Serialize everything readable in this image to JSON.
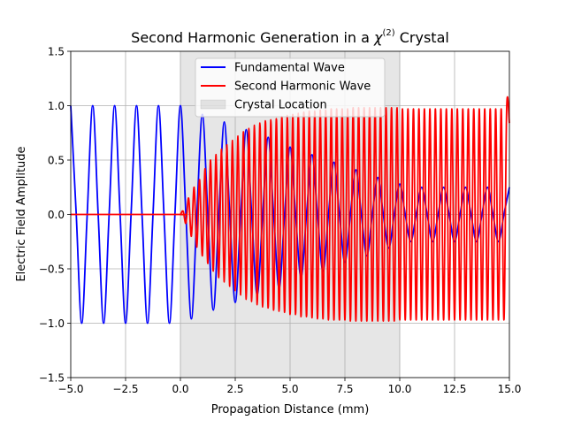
{
  "chart_data": {
    "type": "line",
    "title_main": "Second Harmonic Generation in a ",
    "title_chi": "χ",
    "title_sup": "(2)",
    "title_end": " Crystal",
    "xlabel": "Propagation Distance (mm)",
    "ylabel": "Electric Field Amplitude",
    "xlim": [
      -5,
      15
    ],
    "ylim": [
      -1.5,
      1.5
    ],
    "xticks": [
      -5,
      -2.5,
      0,
      2.5,
      5,
      7.5,
      10,
      12.5,
      15
    ],
    "xtick_labels": [
      "−5.0",
      "−2.5",
      "0.0",
      "2.5",
      "5.0",
      "7.5",
      "10.0",
      "12.5",
      "15.0"
    ],
    "yticks": [
      -1.5,
      -1,
      -0.5,
      0,
      0.5,
      1,
      1.5
    ],
    "ytick_labels": [
      "−1.5",
      "−1.0",
      "−0.5",
      "0.0",
      "0.5",
      "1.0",
      "1.5"
    ],
    "grid": true,
    "legend_position": "top-center",
    "crystal_region": {
      "x_start": 0,
      "x_end": 10,
      "label": "Crystal Location",
      "color": "#808080",
      "opacity": 0.2
    },
    "series": [
      {
        "name": "Fundamental Wave",
        "color": "#0000ff",
        "x": [
          -5,
          -4.75,
          -4.5,
          -4.25,
          -4,
          -3.75,
          -3.5,
          -3.25,
          -3,
          -2.75,
          -2.5,
          -2.25,
          -2,
          -1.75,
          -1.5,
          -1.25,
          -1,
          -0.75,
          -0.5,
          -0.25,
          0,
          0.25,
          0.5,
          0.75,
          1,
          1.25,
          1.5,
          1.75,
          2,
          2.25,
          2.5,
          2.75,
          3,
          3.25,
          3.5,
          3.75,
          4,
          4.25,
          4.5,
          4.75,
          5,
          5.25,
          5.5,
          5.75,
          6,
          6.25,
          6.5,
          6.75,
          7,
          7.25,
          7.5,
          7.75,
          8,
          8.25,
          8.5,
          8.75,
          9,
          9.25,
          9.5,
          9.75,
          10,
          10.25,
          10.5,
          10.75,
          11,
          11.25,
          11.5,
          11.75,
          12,
          12.25,
          12.5,
          12.75,
          13,
          13.25,
          13.5,
          13.75,
          14,
          14.25,
          14.5,
          14.75,
          15
        ],
        "y": [
          1,
          0,
          -1,
          0,
          1,
          0,
          -1,
          0,
          1,
          0,
          -1,
          0,
          1,
          0,
          -1,
          0,
          1,
          0,
          -1,
          0,
          1,
          0,
          -0.96,
          0,
          0.92,
          0,
          -0.88,
          0,
          0.85,
          0,
          -0.81,
          0,
          0.78,
          0,
          -0.74,
          0,
          0.71,
          0,
          -0.68,
          0,
          0.62,
          0,
          -0.58,
          0,
          0.55,
          0,
          -0.52,
          0,
          0.48,
          0,
          -0.44,
          0,
          0.41,
          0,
          -0.38,
          0,
          0.34,
          0,
          -0.31,
          0,
          0.28,
          0,
          -0.25,
          0,
          0.25,
          0,
          -0.25,
          0,
          0.25,
          0,
          -0.25,
          0,
          0.25,
          0,
          -0.25,
          0,
          0.25,
          0,
          -0.25,
          0,
          0.25
        ]
      },
      {
        "name": "Second Harmonic Wave",
        "color": "#ff0000",
        "x": [
          -5,
          -0.1,
          0,
          0.125,
          0.25,
          0.375,
          0.5,
          0.625,
          0.75,
          0.875,
          1,
          1.125,
          1.25,
          1.375,
          1.5,
          1.625,
          1.75,
          1.875,
          2,
          2.125,
          2.25,
          2.375,
          2.5,
          2.625,
          2.75,
          2.875,
          3,
          3.125,
          3.25,
          3.375,
          3.5,
          3.625,
          3.75,
          3.875,
          4,
          4.125,
          4.25,
          4.375,
          4.5,
          4.625,
          4.75,
          4.875,
          5,
          5.125,
          5.25,
          5.375,
          5.5,
          5.625,
          5.75,
          5.875,
          6,
          6.125,
          6.25,
          6.375,
          6.5,
          6.625,
          6.75,
          6.875,
          7,
          7.125,
          7.25,
          7.375,
          7.5,
          7.625,
          7.75,
          7.875,
          8,
          8.125,
          8.25,
          8.375,
          8.5,
          8.625,
          8.75,
          8.875,
          9,
          9.125,
          9.25,
          9.375,
          9.5,
          9.625,
          9.75,
          9.875,
          10,
          10.125,
          10.25,
          10.375,
          10.5,
          10.625,
          10.75,
          10.875,
          11,
          11.125,
          11.25,
          11.375,
          11.5,
          11.625,
          11.75,
          11.875,
          12,
          12.125,
          12.25,
          12.375,
          12.5,
          12.625,
          12.75,
          12.875,
          13,
          13.125,
          13.25,
          13.375,
          13.5,
          13.625,
          13.75,
          13.875,
          14,
          14.125,
          14.25,
          14.375,
          14.5,
          14.625,
          14.75,
          14.875,
          15
        ],
        "y": [
          0,
          0,
          0,
          0.03,
          -0.08,
          0.15,
          -0.2,
          0.25,
          -0.3,
          0.32,
          -0.38,
          0.42,
          -0.45,
          0.5,
          -0.52,
          0.55,
          -0.58,
          0.6,
          -0.62,
          0.64,
          -0.66,
          0.68,
          -0.7,
          0.72,
          -0.74,
          0.76,
          -0.78,
          0.79,
          -0.8,
          0.82,
          -0.83,
          0.84,
          -0.85,
          0.86,
          -0.86,
          0.87,
          -0.88,
          0.88,
          -0.89,
          0.9,
          -0.9,
          0.91,
          -0.92,
          0.92,
          -0.92,
          0.93,
          -0.94,
          0.94,
          -0.94,
          0.95,
          -0.95,
          0.95,
          -0.96,
          0.96,
          -0.96,
          0.96,
          -0.97,
          0.97,
          -0.97,
          0.97,
          -0.97,
          0.97,
          -0.97,
          0.97,
          -0.98,
          0.98,
          -0.98,
          0.98,
          -0.98,
          0.98,
          -0.98,
          0.98,
          -0.98,
          0.98,
          -0.98,
          0.98,
          -0.98,
          0.98,
          -0.98,
          0.98,
          -0.98,
          0.98,
          -0.97,
          0.97,
          -0.97,
          0.97,
          -0.97,
          0.97,
          -0.97,
          0.97,
          -0.97,
          0.97,
          -0.97,
          0.97,
          -0.97,
          0.97,
          -0.97,
          0.97,
          -0.97,
          0.97,
          -0.97,
          0.97,
          -0.97,
          0.97,
          -0.97,
          0.97,
          -0.97,
          0.97,
          -0.97,
          0.97,
          -0.97,
          0.97,
          -0.97,
          0.97,
          -0.97,
          0.97,
          -0.97,
          0.97,
          -0.97,
          0.97,
          -0.97,
          0.97,
          0.84
        ]
      }
    ]
  }
}
